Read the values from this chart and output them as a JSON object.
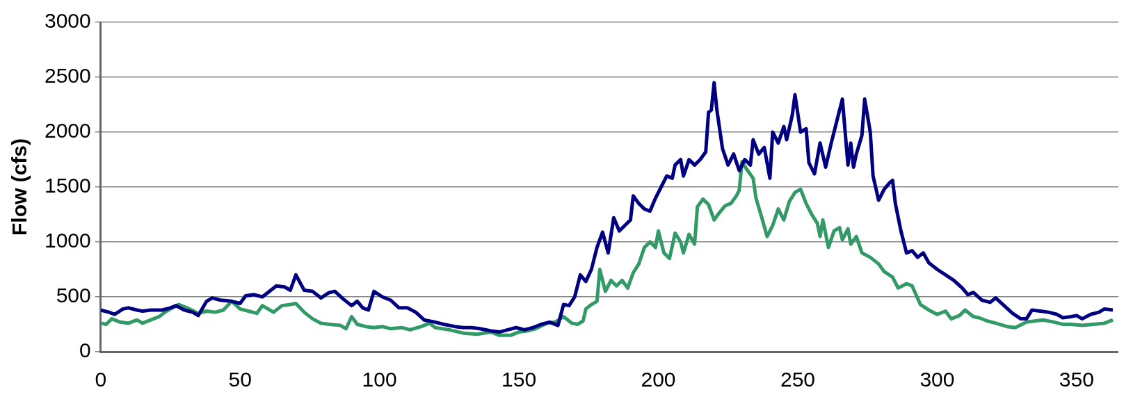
{
  "chart_data": {
    "type": "line",
    "ylabel": "Flow (cfs)",
    "xlim": [
      0,
      365
    ],
    "xticks": [
      0,
      50,
      100,
      150,
      200,
      250,
      300,
      350
    ],
    "ylim": [
      0,
      3000
    ],
    "yticks": [
      0,
      500,
      1000,
      1500,
      2000,
      2500,
      3000
    ],
    "grid": "y",
    "legend": false,
    "marker": "none",
    "line_style": "solid",
    "series": [
      {
        "color": "#000080",
        "x": [
          0,
          3,
          5,
          8,
          10,
          13,
          15,
          18,
          22,
          25,
          27,
          30,
          33,
          35,
          38,
          40,
          43,
          47,
          50,
          52,
          55,
          58,
          60,
          63,
          66,
          68,
          70,
          73,
          76,
          79,
          82,
          84,
          87,
          90,
          92,
          94,
          96,
          98,
          101,
          104,
          107,
          110,
          113,
          116,
          120,
          123,
          127,
          130,
          133,
          136,
          140,
          143,
          146,
          149,
          152,
          155,
          158,
          161,
          164,
          166,
          168,
          170,
          172,
          174,
          176,
          178,
          180,
          182,
          184,
          186,
          188,
          190,
          191,
          193,
          195,
          197,
          199,
          201,
          203,
          205,
          206,
          208,
          209,
          211,
          213,
          215,
          217,
          218,
          219,
          220,
          221,
          223,
          225,
          227,
          229,
          231,
          233,
          234,
          236,
          238,
          240,
          241,
          243,
          245,
          246,
          248,
          249,
          251,
          253,
          254,
          256,
          258,
          260,
          262,
          264,
          266,
          268,
          269,
          270,
          271,
          273,
          274,
          276,
          277,
          279,
          281,
          283,
          284,
          285,
          287,
          289,
          291,
          293,
          295,
          297,
          300,
          303,
          306,
          309,
          311,
          313,
          316,
          319,
          321,
          324,
          327,
          330,
          332,
          334,
          337,
          340,
          343,
          345,
          348,
          350,
          352,
          355,
          358,
          360,
          363
        ],
        "values": [
          380,
          360,
          340,
          390,
          400,
          380,
          370,
          380,
          380,
          400,
          420,
          380,
          360,
          330,
          460,
          490,
          470,
          460,
          440,
          510,
          520,
          500,
          540,
          600,
          590,
          560,
          700,
          560,
          550,
          490,
          540,
          550,
          480,
          420,
          460,
          400,
          380,
          550,
          500,
          470,
          400,
          400,
          360,
          290,
          270,
          250,
          230,
          220,
          220,
          210,
          190,
          180,
          200,
          220,
          200,
          220,
          250,
          270,
          240,
          430,
          420,
          500,
          700,
          640,
          750,
          950,
          1090,
          900,
          1220,
          1100,
          1150,
          1200,
          1420,
          1350,
          1300,
          1280,
          1400,
          1500,
          1600,
          1580,
          1700,
          1750,
          1600,
          1750,
          1700,
          1750,
          1820,
          2180,
          2200,
          2450,
          2200,
          1850,
          1700,
          1800,
          1650,
          1750,
          1700,
          1930,
          1800,
          1860,
          1580,
          2000,
          1900,
          2050,
          1930,
          2150,
          2340,
          2000,
          2030,
          1720,
          1620,
          1900,
          1680,
          1900,
          2100,
          2300,
          1700,
          1900,
          1680,
          1800,
          1970,
          2300,
          2000,
          1600,
          1380,
          1480,
          1540,
          1560,
          1350,
          1100,
          900,
          920,
          860,
          900,
          810,
          750,
          700,
          650,
          580,
          520,
          540,
          470,
          450,
          490,
          420,
          350,
          300,
          300,
          380,
          370,
          360,
          340,
          310,
          320,
          330,
          300,
          340,
          360,
          390,
          380
        ]
      },
      {
        "color": "#339966",
        "x": [
          0,
          2,
          4,
          7,
          10,
          13,
          15,
          18,
          21,
          23,
          25,
          28,
          31,
          35,
          38,
          41,
          44,
          47,
          50,
          53,
          56,
          58,
          60,
          62,
          65,
          68,
          70,
          73,
          76,
          79,
          82,
          86,
          88,
          90,
          92,
          95,
          98,
          101,
          104,
          108,
          111,
          115,
          118,
          120,
          125,
          130,
          135,
          140,
          143,
          147,
          150,
          153,
          156,
          160,
          163,
          166,
          169,
          171,
          173,
          174,
          176,
          178,
          179,
          181,
          183,
          185,
          187,
          189,
          191,
          193,
          195,
          197,
          199,
          200,
          202,
          204,
          206,
          208,
          209,
          211,
          213,
          214,
          216,
          218,
          220,
          222,
          224,
          226,
          228,
          229,
          230,
          232,
          234,
          235,
          237,
          239,
          241,
          243,
          245,
          247,
          249,
          251,
          253,
          255,
          257,
          258,
          259,
          261,
          263,
          265,
          266,
          268,
          269,
          271,
          273,
          276,
          279,
          281,
          284,
          286,
          289,
          291,
          294,
          297,
          300,
          303,
          305,
          308,
          310,
          313,
          315,
          318,
          321,
          325,
          328,
          332,
          335,
          338,
          342,
          345,
          348,
          352,
          356,
          360,
          363
        ],
        "values": [
          260,
          250,
          300,
          270,
          260,
          290,
          260,
          290,
          320,
          360,
          390,
          430,
          400,
          350,
          370,
          360,
          380,
          460,
          390,
          370,
          350,
          420,
          390,
          360,
          420,
          430,
          440,
          360,
          300,
          260,
          250,
          240,
          210,
          320,
          250,
          230,
          220,
          230,
          210,
          220,
          200,
          230,
          260,
          220,
          200,
          170,
          160,
          180,
          150,
          150,
          180,
          190,
          210,
          260,
          270,
          320,
          260,
          250,
          280,
          390,
          430,
          460,
          750,
          550,
          650,
          600,
          650,
          580,
          720,
          800,
          950,
          1000,
          950,
          1100,
          900,
          850,
          1080,
          1000,
          900,
          1070,
          980,
          1320,
          1390,
          1340,
          1200,
          1270,
          1330,
          1350,
          1420,
          1470,
          1730,
          1650,
          1580,
          1400,
          1230,
          1050,
          1150,
          1300,
          1200,
          1370,
          1450,
          1480,
          1350,
          1250,
          1170,
          1050,
          1200,
          950,
          1100,
          1130,
          1020,
          1120,
          980,
          1050,
          900,
          860,
          800,
          730,
          680,
          580,
          620,
          600,
          430,
          380,
          340,
          370,
          300,
          330,
          380,
          320,
          310,
          280,
          260,
          230,
          220,
          270,
          280,
          290,
          270,
          250,
          250,
          240,
          250,
          260,
          290
        ]
      }
    ]
  }
}
